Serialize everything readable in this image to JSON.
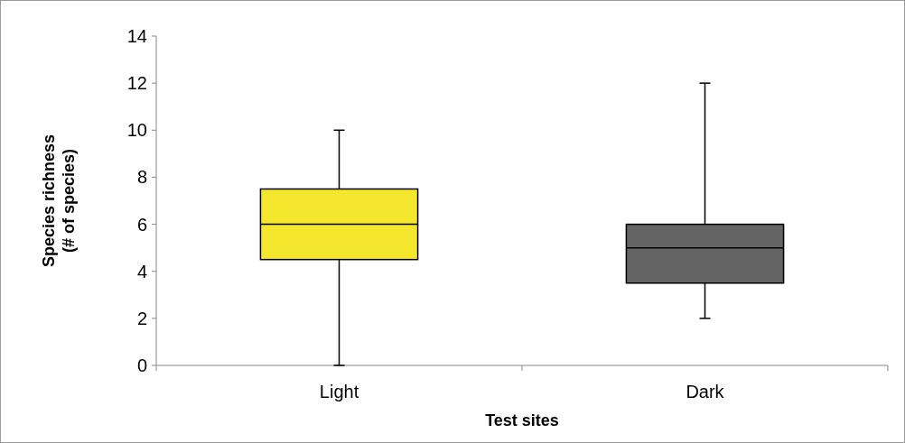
{
  "chart_data": {
    "type": "box",
    "categories": [
      "Light",
      "Dark"
    ],
    "boxes": [
      {
        "low": 0,
        "q1": 4.5,
        "median": 6,
        "q3": 7.5,
        "high": 10
      },
      {
        "low": 2,
        "q1": 3.5,
        "median": 5,
        "q3": 6,
        "high": 12
      }
    ],
    "colors": [
      "#f5e62e",
      "#646464"
    ],
    "xlabel": "Test sites",
    "ylabel": "Species richness\n(# of species)",
    "ylim": [
      0,
      14
    ],
    "yticks": [
      0,
      2,
      4,
      6,
      8,
      10,
      12,
      14
    ],
    "grid": false
  }
}
